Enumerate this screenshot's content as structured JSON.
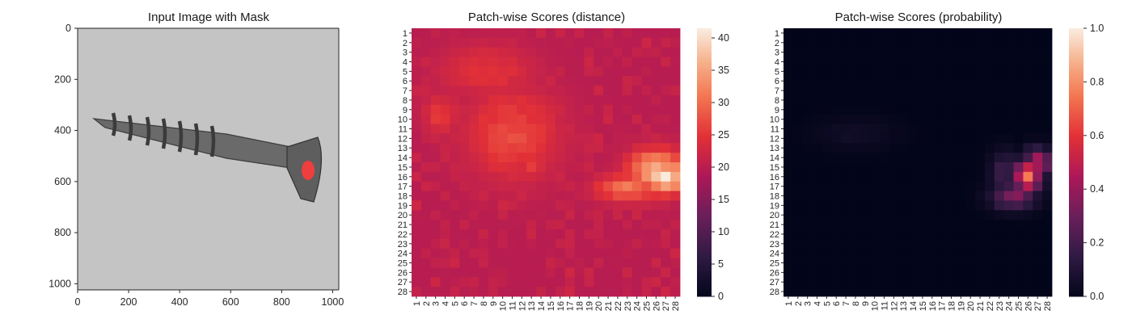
{
  "colors": {
    "background": "#ffffff",
    "axis": "#262626",
    "mask": "#ff3b3b"
  },
  "chart_data": [
    {
      "type": "image",
      "title": "Input Image with Mask",
      "xticks": [
        "0",
        "200",
        "400",
        "600",
        "800",
        "1000"
      ],
      "yticks": [
        "0",
        "200",
        "400",
        "600",
        "800",
        "1000"
      ],
      "xlim": [
        0,
        1024
      ],
      "ylim": [
        1024,
        0
      ],
      "content": "grayscale photo of a screw with a red anomaly mask on the head"
    },
    {
      "type": "heatmap",
      "title": "Patch-wise Scores (distance)",
      "rows": 28,
      "cols": 28,
      "row_labels": [
        "1",
        "2",
        "3",
        "4",
        "5",
        "6",
        "7",
        "8",
        "9",
        "10",
        "11",
        "12",
        "13",
        "14",
        "15",
        "16",
        "17",
        "18",
        "19",
        "20",
        "21",
        "22",
        "23",
        "24",
        "25",
        "26",
        "27",
        "28"
      ],
      "col_labels": [
        "1",
        "2",
        "3",
        "4",
        "5",
        "6",
        "7",
        "8",
        "9",
        "10",
        "11",
        "12",
        "13",
        "14",
        "15",
        "16",
        "17",
        "18",
        "19",
        "20",
        "21",
        "22",
        "23",
        "24",
        "25",
        "26",
        "27",
        "28"
      ],
      "colorbar_ticks": [
        "0",
        "5",
        "10",
        "15",
        "20",
        "25",
        "30",
        "35",
        "40"
      ],
      "vmin": 0,
      "vmax": 41.5,
      "baseline": 20,
      "hotspots": [
        {
          "row": 16,
          "col": 27,
          "value": 41,
          "sr": 1.2,
          "sc": 1.5
        },
        {
          "row": 15.5,
          "col": 26,
          "value": 36,
          "sr": 1.6,
          "sc": 2.0
        },
        {
          "row": 17.2,
          "col": 23,
          "value": 31,
          "sr": 1.0,
          "sc": 2.2
        },
        {
          "row": 11.5,
          "col": 11,
          "value": 27,
          "sr": 3.5,
          "sc": 3.5
        },
        {
          "row": 14.5,
          "col": 13,
          "value": 26,
          "sr": 1.5,
          "sc": 1.2
        },
        {
          "row": 9.5,
          "col": 3.5,
          "value": 26,
          "sr": 1.5,
          "sc": 1.2
        },
        {
          "row": 5,
          "col": 8.5,
          "value": 25,
          "sr": 2.0,
          "sc": 3.5
        }
      ]
    },
    {
      "type": "heatmap",
      "title": "Patch-wise Scores (probability)",
      "rows": 28,
      "cols": 28,
      "row_labels": [
        "1",
        "2",
        "3",
        "4",
        "5",
        "6",
        "7",
        "8",
        "9",
        "10",
        "11",
        "12",
        "13",
        "14",
        "15",
        "16",
        "17",
        "18",
        "19",
        "20",
        "21",
        "22",
        "23",
        "24",
        "25",
        "26",
        "27",
        "28"
      ],
      "col_labels": [
        "1",
        "2",
        "3",
        "4",
        "5",
        "6",
        "7",
        "8",
        "9",
        "10",
        "11",
        "12",
        "13",
        "14",
        "15",
        "16",
        "17",
        "18",
        "19",
        "20",
        "21",
        "22",
        "23",
        "24",
        "25",
        "26",
        "27",
        "28"
      ],
      "colorbar_ticks": [
        "0.0",
        "0.2",
        "0.4",
        "0.6",
        "0.8",
        "1.0"
      ],
      "vmin": 0,
      "vmax": 1,
      "baseline": 0,
      "hotspots": [
        {
          "row": 16,
          "col": 26,
          "value": 0.68,
          "sr": 1.2,
          "sc": 1.0
        },
        {
          "row": 14.5,
          "col": 27,
          "value": 0.45,
          "sr": 1.0,
          "sc": 1.0
        },
        {
          "row": 18,
          "col": 24.5,
          "value": 0.35,
          "sr": 1.0,
          "sc": 1.6
        },
        {
          "row": 15.5,
          "col": 23.5,
          "value": 0.18,
          "sr": 1.5,
          "sc": 1.0
        },
        {
          "row": 11.5,
          "col": 8,
          "value": 0.05,
          "sr": 1.2,
          "sc": 3.0
        }
      ]
    }
  ]
}
